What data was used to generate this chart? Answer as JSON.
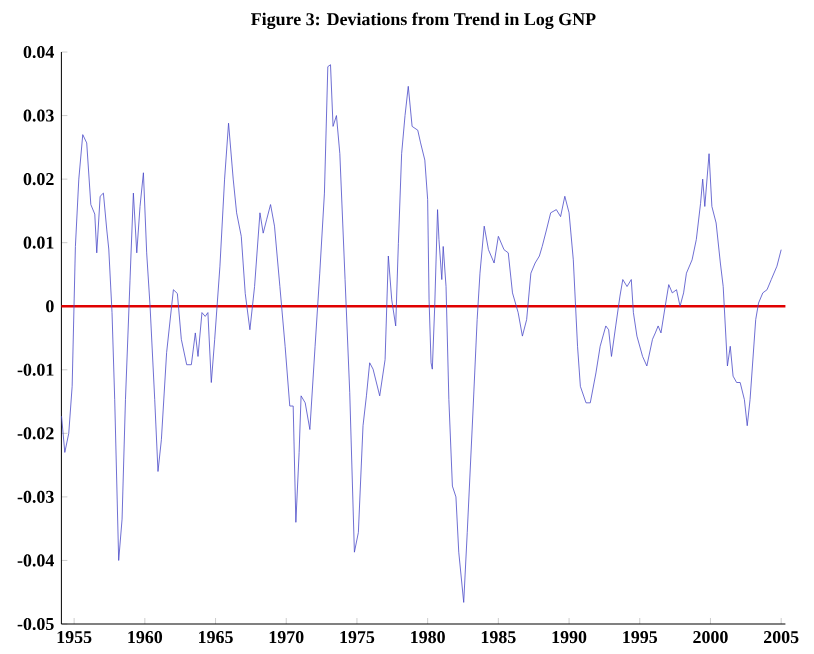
{
  "chart_data": {
    "type": "line",
    "title": "Figure 3: Deviations from Trend in Log GNP",
    "xlim": [
      1954.1,
      2005.3
    ],
    "ylim": [
      -0.05,
      0.04
    ],
    "xticks": [
      1955,
      1960,
      1965,
      1970,
      1975,
      1980,
      1985,
      1990,
      1995,
      2000,
      2005
    ],
    "yticks": [
      -0.05,
      -0.04,
      -0.03,
      -0.02,
      -0.01,
      0,
      0.01,
      0.02,
      0.03,
      0.04
    ],
    "grid": false,
    "marker": "none",
    "line_style": "solid",
    "ref_lines": [
      {
        "axis": "y",
        "value": 0,
        "color": "#e00000"
      }
    ],
    "series": [
      {
        "color": "#4a4ac8",
        "x": [
          1954.11,
          1954.34,
          1954.62,
          1954.86,
          1955.09,
          1955.33,
          1955.61,
          1955.89,
          1956.18,
          1956.46,
          1956.6,
          1956.84,
          1957.07,
          1957.31,
          1957.45,
          1957.68,
          1957.87,
          1958.15,
          1958.39,
          1958.63,
          1958.95,
          1959.19,
          1959.43,
          1959.66,
          1959.9,
          1960.13,
          1960.37,
          1960.7,
          1960.93,
          1961.17,
          1961.54,
          1962.02,
          1962.3,
          1962.58,
          1962.96,
          1963.29,
          1963.57,
          1963.76,
          1964.04,
          1964.27,
          1964.46,
          1964.7,
          1964.94,
          1965.31,
          1965.64,
          1965.92,
          1966.25,
          1966.49,
          1966.82,
          1967.1,
          1967.43,
          1967.76,
          1968.14,
          1968.37,
          1968.61,
          1968.89,
          1969.17,
          1969.55,
          1969.92,
          1970.25,
          1970.49,
          1970.68,
          1970.91,
          1971.05,
          1971.34,
          1971.67,
          1972.04,
          1972.37,
          1972.7,
          1972.94,
          1973.13,
          1973.31,
          1973.55,
          1973.79,
          1974.16,
          1974.49,
          1974.82,
          1975.1,
          1975.43,
          1975.67,
          1975.9,
          1976.14,
          1976.61,
          1976.99,
          1977.22,
          1977.46,
          1977.74,
          1977.93,
          1978.16,
          1978.4,
          1978.63,
          1978.9,
          1979.3,
          1979.5,
          1979.8,
          1980.0,
          1980.1,
          1980.24,
          1980.33,
          1980.5,
          1980.7,
          1980.8,
          1981.0,
          1981.1,
          1981.3,
          1981.5,
          1981.75,
          1982.0,
          1982.2,
          1982.55,
          1982.8,
          1983.2,
          1983.5,
          1983.7,
          1984.0,
          1984.3,
          1984.7,
          1985.0,
          1985.4,
          1985.7,
          1986.0,
          1986.4,
          1986.7,
          1987.0,
          1987.3,
          1987.6,
          1987.9,
          1988.1,
          1988.4,
          1988.7,
          1989.1,
          1989.4,
          1989.7,
          1990.0,
          1990.3,
          1990.6,
          1990.8,
          1991.2,
          1991.5,
          1991.9,
          1992.2,
          1992.6,
          1992.8,
          1993.0,
          1993.3,
          1993.6,
          1993.8,
          1994.1,
          1994.4,
          1994.55,
          1994.8,
          1995.2,
          1995.5,
          1995.9,
          1996.1,
          1996.3,
          1996.5,
          1996.8,
          1997.05,
          1997.3,
          1997.6,
          1997.85,
          1998.1,
          1998.3,
          1998.7,
          1999.0,
          1999.3,
          1999.45,
          1999.6,
          1999.9,
          2000.1,
          2000.4,
          2000.7,
          2000.9,
          2001.2,
          2001.4,
          2001.6,
          2001.85,
          2002.1,
          2002.4,
          2002.6,
          2002.8,
          2003.2,
          2003.4,
          2003.7,
          2004.0,
          2004.3,
          2004.7,
          2005.0
        ],
        "values": [
          -0.0173,
          -0.023,
          -0.02,
          -0.0126,
          0.0094,
          0.02,
          0.027,
          0.0257,
          0.016,
          0.0145,
          0.0084,
          0.0173,
          0.0178,
          0.012,
          0.009,
          -0.001,
          -0.0147,
          -0.04,
          -0.0335,
          -0.0147,
          0.004,
          0.0178,
          0.0084,
          0.0157,
          0.021,
          0.0084,
          0,
          -0.0147,
          -0.026,
          -0.021,
          -0.0073,
          0.0026,
          0.002,
          -0.0052,
          -0.0092,
          -0.0092,
          -0.0042,
          -0.0079,
          -0.001,
          -0.0016,
          -0.001,
          -0.012,
          -0.0052,
          0.0063,
          0.02,
          0.0288,
          0.02,
          0.0147,
          0.011,
          0.002,
          -0.0037,
          0.0031,
          0.0147,
          0.0115,
          0.0136,
          0.016,
          0.0126,
          0.0031,
          -0.0063,
          -0.0157,
          -0.0157,
          -0.034,
          -0.023,
          -0.0141,
          -0.0152,
          -0.0194,
          -0.0063,
          0.0052,
          0.0178,
          0.0377,
          0.038,
          0.0283,
          0.03,
          0.024,
          0.0042,
          -0.0136,
          -0.0387,
          -0.0356,
          -0.0188,
          -0.0141,
          -0.0089,
          -0.0099,
          -0.0141,
          -0.0084,
          0.0079,
          0.001,
          -0.0031,
          0.0099,
          0.024,
          0.03,
          0.0346,
          0.0283,
          0.0277,
          0.0257,
          0.023,
          0.0168,
          0.001,
          -0.0089,
          -0.0099,
          0,
          0.0152,
          0.0105,
          0.0042,
          0.0094,
          0.0031,
          -0.0147,
          -0.0283,
          -0.03,
          -0.0387,
          -0.0466,
          -0.0356,
          -0.0168,
          -0.0021,
          0.0052,
          0.0126,
          0.0089,
          0.0068,
          0.011,
          0.0089,
          0.0084,
          0.0021,
          -0.001,
          -0.0047,
          -0.0021,
          0.0052,
          0.0068,
          0.0079,
          0.0094,
          0.012,
          0.0147,
          0.0152,
          0.0141,
          0.0173,
          0.0147,
          0.0073,
          -0.0063,
          -0.0126,
          -0.0152,
          -0.0152,
          -0.0105,
          -0.0063,
          -0.0031,
          -0.0037,
          -0.0079,
          -0.0031,
          0.0016,
          0.0042,
          0.0031,
          0.0042,
          -0.001,
          -0.0047,
          -0.0079,
          -0.0094,
          -0.0052,
          -0.0042,
          -0.0031,
          -0.0042,
          0,
          0.0034,
          0.0021,
          0.0026,
          0,
          0.0021,
          0.0052,
          0.0073,
          0.0105,
          0.0162,
          0.02,
          0.0157,
          0.024,
          0.0157,
          0.0131,
          0.0068,
          0.0031,
          -0.0094,
          -0.0063,
          -0.011,
          -0.012,
          -0.012,
          -0.0147,
          -0.0188,
          -0.0147,
          -0.0021,
          0.0005,
          0.0021,
          0.0026,
          0.0042,
          0.0063,
          0.0089
        ]
      }
    ]
  }
}
